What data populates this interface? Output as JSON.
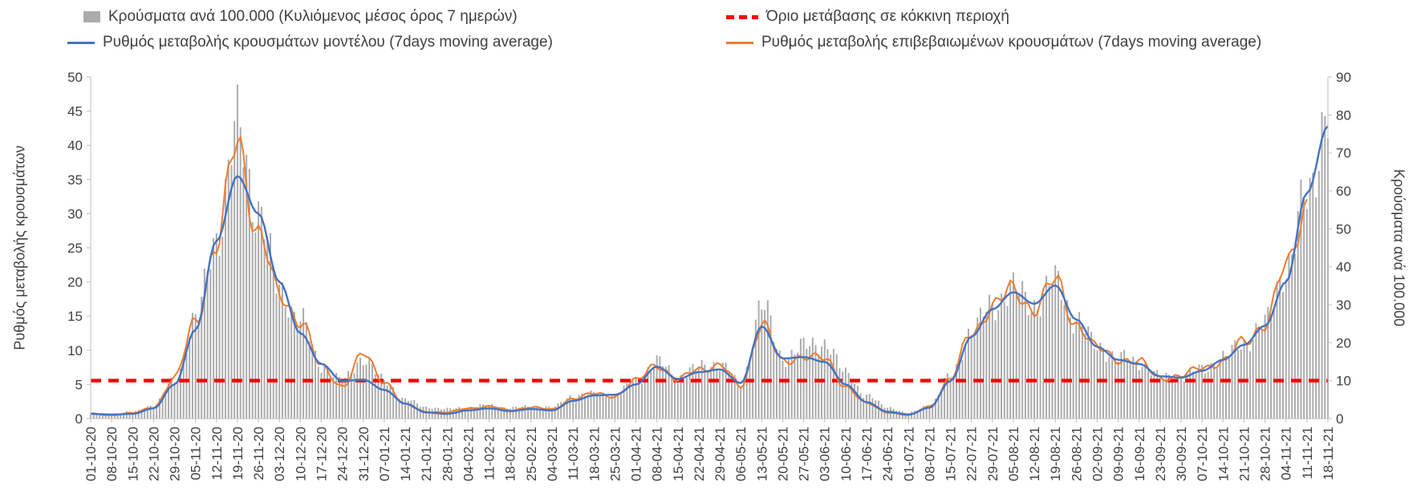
{
  "legend": {
    "bars_label": "Κρούσματα ανά 100.000 (Κυλιόμενος μέσος όρος 7 ημερών)",
    "threshold_label": "Όριο μετάβασης σε κόκκινη περιοχή",
    "model_label": "Ρυθμός μεταβολής κρουσμάτων μοντέλου (7days moving average)",
    "confirmed_label": "Ρυθμός μεταβολής επιβεβαιωμένων κρουσμάτων (7days moving average)"
  },
  "axes": {
    "left_title": "Ρυθμός μεταβολής κρουσμάτων",
    "right_title": "Κρούσματα ανά 100.000",
    "left_ticks": [
      0,
      5,
      10,
      15,
      20,
      25,
      30,
      35,
      40,
      45,
      50
    ],
    "right_ticks": [
      0,
      10,
      20,
      30,
      40,
      50,
      60,
      70,
      80,
      90
    ]
  },
  "colors": {
    "bars": "#ababab",
    "model": "#4472c4",
    "confirmed": "#ed7d31",
    "threshold": "#ff0000",
    "axis": "#bfbfbf",
    "text": "#404040"
  },
  "chart_data": {
    "type": "bar",
    "subtype": "composite-bar-and-lines",
    "x_tick_interval": "weekly (bars are daily, values below sampled at the weekly tick dates)",
    "categories": [
      "01-10-20",
      "08-10-20",
      "15-10-20",
      "22-10-20",
      "29-10-20",
      "05-11-20",
      "12-11-20",
      "19-11-20",
      "26-11-20",
      "03-12-20",
      "10-12-20",
      "17-12-20",
      "24-12-20",
      "31-12-20",
      "07-01-21",
      "14-01-21",
      "21-01-21",
      "28-01-21",
      "04-02-21",
      "11-02-21",
      "18-02-21",
      "25-02-21",
      "04-03-21",
      "11-03-21",
      "18-03-21",
      "25-03-21",
      "01-04-21",
      "08-04-21",
      "15-04-21",
      "22-04-21",
      "29-04-21",
      "06-05-21",
      "13-05-21",
      "20-05-21",
      "27-05-21",
      "03-06-21",
      "10-06-21",
      "17-06-21",
      "24-06-21",
      "01-07-21",
      "08-07-21",
      "15-07-21",
      "22-07-21",
      "29-07-21",
      "05-08-21",
      "12-08-21",
      "19-08-21",
      "26-08-21",
      "02-09-21",
      "09-09-21",
      "16-09-21",
      "23-09-21",
      "30-09-21",
      "07-10-21",
      "14-10-21",
      "21-10-21",
      "28-10-21",
      "04-11-21",
      "11-11-21",
      "18-11-21"
    ],
    "ylim_left": [
      0,
      50
    ],
    "ylim_right": [
      0,
      90
    ],
    "threshold": {
      "axis": "right",
      "value": 10
    },
    "series": [
      {
        "name": "Κρούσματα ανά 100.000 (Κυλιόμενος μέσος όρος 7 ημερών)",
        "type": "bar",
        "axis": "right",
        "values": [
          1.5,
          1.2,
          1.8,
          3.5,
          10,
          26,
          48,
          76,
          55,
          34,
          26,
          14,
          10,
          16,
          10,
          5,
          3,
          2.5,
          3,
          3.5,
          2.8,
          3.2,
          3,
          6,
          6.5,
          6.2,
          10,
          15,
          11,
          13.5,
          14.5,
          9,
          30,
          16,
          19,
          20,
          12,
          6,
          3,
          1.5,
          3.5,
          11,
          23,
          30,
          34,
          30,
          36,
          26,
          19,
          16,
          15,
          11,
          11,
          13,
          16,
          20,
          25,
          40,
          58,
          82
        ]
      },
      {
        "name": "Ρυθμός μεταβολής κρουσμάτων μοντέλου (7days moving average)",
        "type": "line",
        "axis": "left",
        "values": [
          0.7,
          0.6,
          0.7,
          1.5,
          5.0,
          13.0,
          26.0,
          35.5,
          30.0,
          20.0,
          12.5,
          8.0,
          5.5,
          5.7,
          4.2,
          2.2,
          0.9,
          0.7,
          1.2,
          1.5,
          1.1,
          1.4,
          1.2,
          2.6,
          3.4,
          3.5,
          5.0,
          7.6,
          5.8,
          6.8,
          7.2,
          5.2,
          13.5,
          8.8,
          9.0,
          8.3,
          5.0,
          2.4,
          1.0,
          0.6,
          1.6,
          5.5,
          12.0,
          16.0,
          18.5,
          16.8,
          19.5,
          14.5,
          10.5,
          8.6,
          8.0,
          6.2,
          6.0,
          7.0,
          8.6,
          10.8,
          13.6,
          20.0,
          33.0,
          42.8
        ]
      },
      {
        "name": "Ρυθμός μεταβολής επιβεβαιωμένων κρουσμάτων (7days moving average)",
        "type": "line",
        "axis": "left",
        "values": [
          0.7,
          0.5,
          0.8,
          1.7,
          5.8,
          14.5,
          25.0,
          41.0,
          27.0,
          18.0,
          14.5,
          7.5,
          4.8,
          9.3,
          5.5,
          2.0,
          1.0,
          0.9,
          1.5,
          1.8,
          1.2,
          1.7,
          1.3,
          3.0,
          3.6,
          3.3,
          5.5,
          8.0,
          5.6,
          7.3,
          7.8,
          4.7,
          14.0,
          8.2,
          9.3,
          8.6,
          4.8,
          2.2,
          0.9,
          0.5,
          1.8,
          5.8,
          12.5,
          16.5,
          18.7,
          16.2,
          20.0,
          14.0,
          10.2,
          8.8,
          8.2,
          6.0,
          6.2,
          7.5,
          8.4,
          11.2,
          14.0,
          22.0,
          31.8,
          null
        ]
      }
    ]
  }
}
